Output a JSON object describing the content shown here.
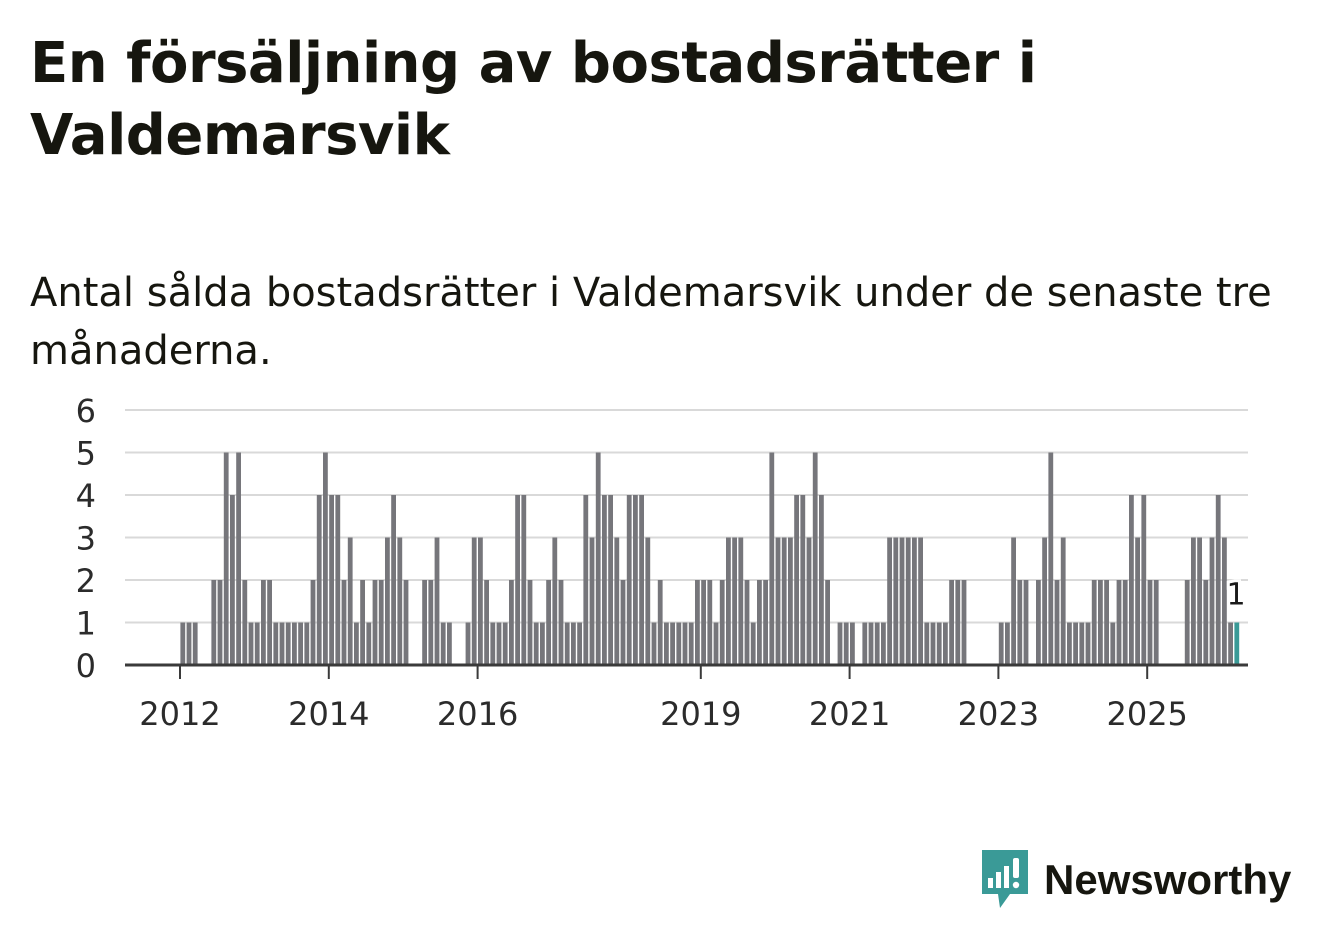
{
  "header": {
    "title": "En försäljning av bostadsrätter i Valdemarsvik",
    "subtitle": "Antal sålda bostadsrätter i Valdemarsvik under de senaste tre månaderna."
  },
  "brand": {
    "name": "Newsworthy",
    "icon": "newsworthy-logo-icon",
    "color": "#3a9a97"
  },
  "chart_data": {
    "type": "bar",
    "title": "En försäljning av bostadsrätter i Valdemarsvik",
    "subtitle": "Antal sålda bostadsrätter i Valdemarsvik under de senaste tre månaderna.",
    "xlabel": "",
    "ylabel": "",
    "ylim": [
      0,
      6
    ],
    "yticks": [
      0,
      1,
      2,
      3,
      4,
      5,
      6
    ],
    "grid": true,
    "x_start": "2011-03",
    "x_end": "2025-09",
    "xtick_labels": [
      {
        "label": "2012",
        "month": "2012-01"
      },
      {
        "label": "2014",
        "month": "2014-01"
      },
      {
        "label": "2016",
        "month": "2016-01"
      },
      {
        "label": "2019",
        "month": "2019-01"
      },
      {
        "label": "2021",
        "month": "2021-01"
      },
      {
        "label": "2023",
        "month": "2023-01"
      },
      {
        "label": "2025",
        "month": "2025-01"
      }
    ],
    "bar_color": "#76767b",
    "highlight_color": "#3a9a97",
    "highlight_label": "1",
    "series": [
      {
        "values": [
          0,
          0,
          0,
          0,
          0,
          0,
          0,
          0,
          0,
          0,
          1,
          1,
          1,
          0,
          0,
          2,
          2,
          5,
          4,
          5,
          2,
          1,
          1,
          2,
          2,
          1,
          1,
          1,
          1,
          1,
          1,
          2,
          4,
          5,
          4,
          4,
          2,
          3,
          1,
          2,
          1,
          2,
          2,
          3,
          4,
          3,
          2,
          0,
          0,
          2,
          2,
          3,
          1,
          1,
          0,
          0,
          1,
          3,
          3,
          2,
          1,
          1,
          1,
          2,
          4,
          4,
          2,
          1,
          1,
          2,
          3,
          2,
          1,
          1,
          1,
          4,
          3,
          5,
          4,
          4,
          3,
          2,
          4,
          4,
          4,
          3,
          1,
          2,
          1,
          1,
          1,
          1,
          1,
          2,
          2,
          2,
          1,
          2,
          3,
          3,
          3,
          2,
          1,
          2,
          2,
          5,
          3,
          3,
          3,
          4,
          4,
          3,
          5,
          4,
          2,
          0,
          1,
          1,
          1,
          0,
          1,
          1,
          1,
          1,
          3,
          3,
          3,
          3,
          3,
          3,
          1,
          1,
          1,
          1,
          2,
          2,
          2,
          0,
          0,
          0,
          0,
          0,
          1,
          1,
          3,
          2,
          2,
          0,
          2,
          3,
          5,
          2,
          3,
          1,
          1,
          1,
          1,
          2,
          2,
          2,
          1,
          2,
          2,
          4,
          3,
          4,
          2,
          2,
          0,
          0,
          0,
          0,
          2,
          3,
          3,
          2,
          3,
          4,
          3,
          1,
          1
        ]
      }
    ]
  }
}
